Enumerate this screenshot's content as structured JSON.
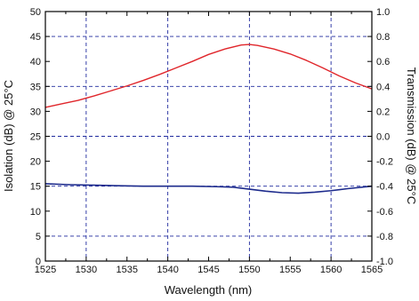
{
  "chart_data": {
    "type": "line",
    "title": "",
    "xlabel": "Wavelength (nm)",
    "ylabel_left": "Isolation (dB) @ 25°C",
    "ylabel_right": "Transmission (dB) @ 25°C",
    "xlim": [
      1525,
      1565
    ],
    "ylim_left": [
      0,
      50
    ],
    "ylim_right": [
      -1.0,
      1.0
    ],
    "x_ticks": [
      "1525",
      "1530",
      "1535",
      "1540",
      "1545",
      "1550",
      "1555",
      "1560",
      "1565"
    ],
    "y_left_ticks": [
      "0",
      "5",
      "10",
      "15",
      "20",
      "25",
      "30",
      "35",
      "40",
      "45",
      "50"
    ],
    "y_right_ticks": [
      "-1.0",
      "-0.8",
      "-0.6",
      "-0.4",
      "-0.2",
      "0.0",
      "0.2",
      "0.4",
      "0.6",
      "0.8",
      "1.0"
    ],
    "grid": {
      "x": [
        1530,
        1540,
        1550,
        1560
      ],
      "y_left": [
        5,
        15,
        25,
        35,
        45
      ]
    },
    "series": [
      {
        "axis": "left",
        "color": "#e0262b",
        "x": [
          1525,
          1527,
          1529,
          1531,
          1533,
          1535,
          1537,
          1539,
          1541,
          1543,
          1545,
          1547,
          1549,
          1550,
          1551,
          1553,
          1555,
          1557,
          1559,
          1561,
          1563,
          1565
        ],
        "y": [
          30.8,
          31.5,
          32.2,
          33.1,
          34.1,
          35.1,
          36.2,
          37.4,
          38.7,
          40.0,
          41.4,
          42.5,
          43.3,
          43.4,
          43.2,
          42.5,
          41.5,
          40.2,
          38.7,
          37.1,
          35.7,
          34.5
        ]
      },
      {
        "axis": "left",
        "color": "#1c2a8c",
        "x": [
          1525,
          1528,
          1531,
          1534,
          1537,
          1540,
          1543,
          1546,
          1548,
          1550,
          1552,
          1554,
          1556,
          1558,
          1560,
          1562,
          1565
        ],
        "y": [
          15.5,
          15.3,
          15.2,
          15.1,
          15.0,
          15.0,
          15.0,
          14.9,
          14.8,
          14.4,
          14.0,
          13.7,
          13.6,
          13.8,
          14.1,
          14.5,
          15.0
        ]
      }
    ]
  }
}
